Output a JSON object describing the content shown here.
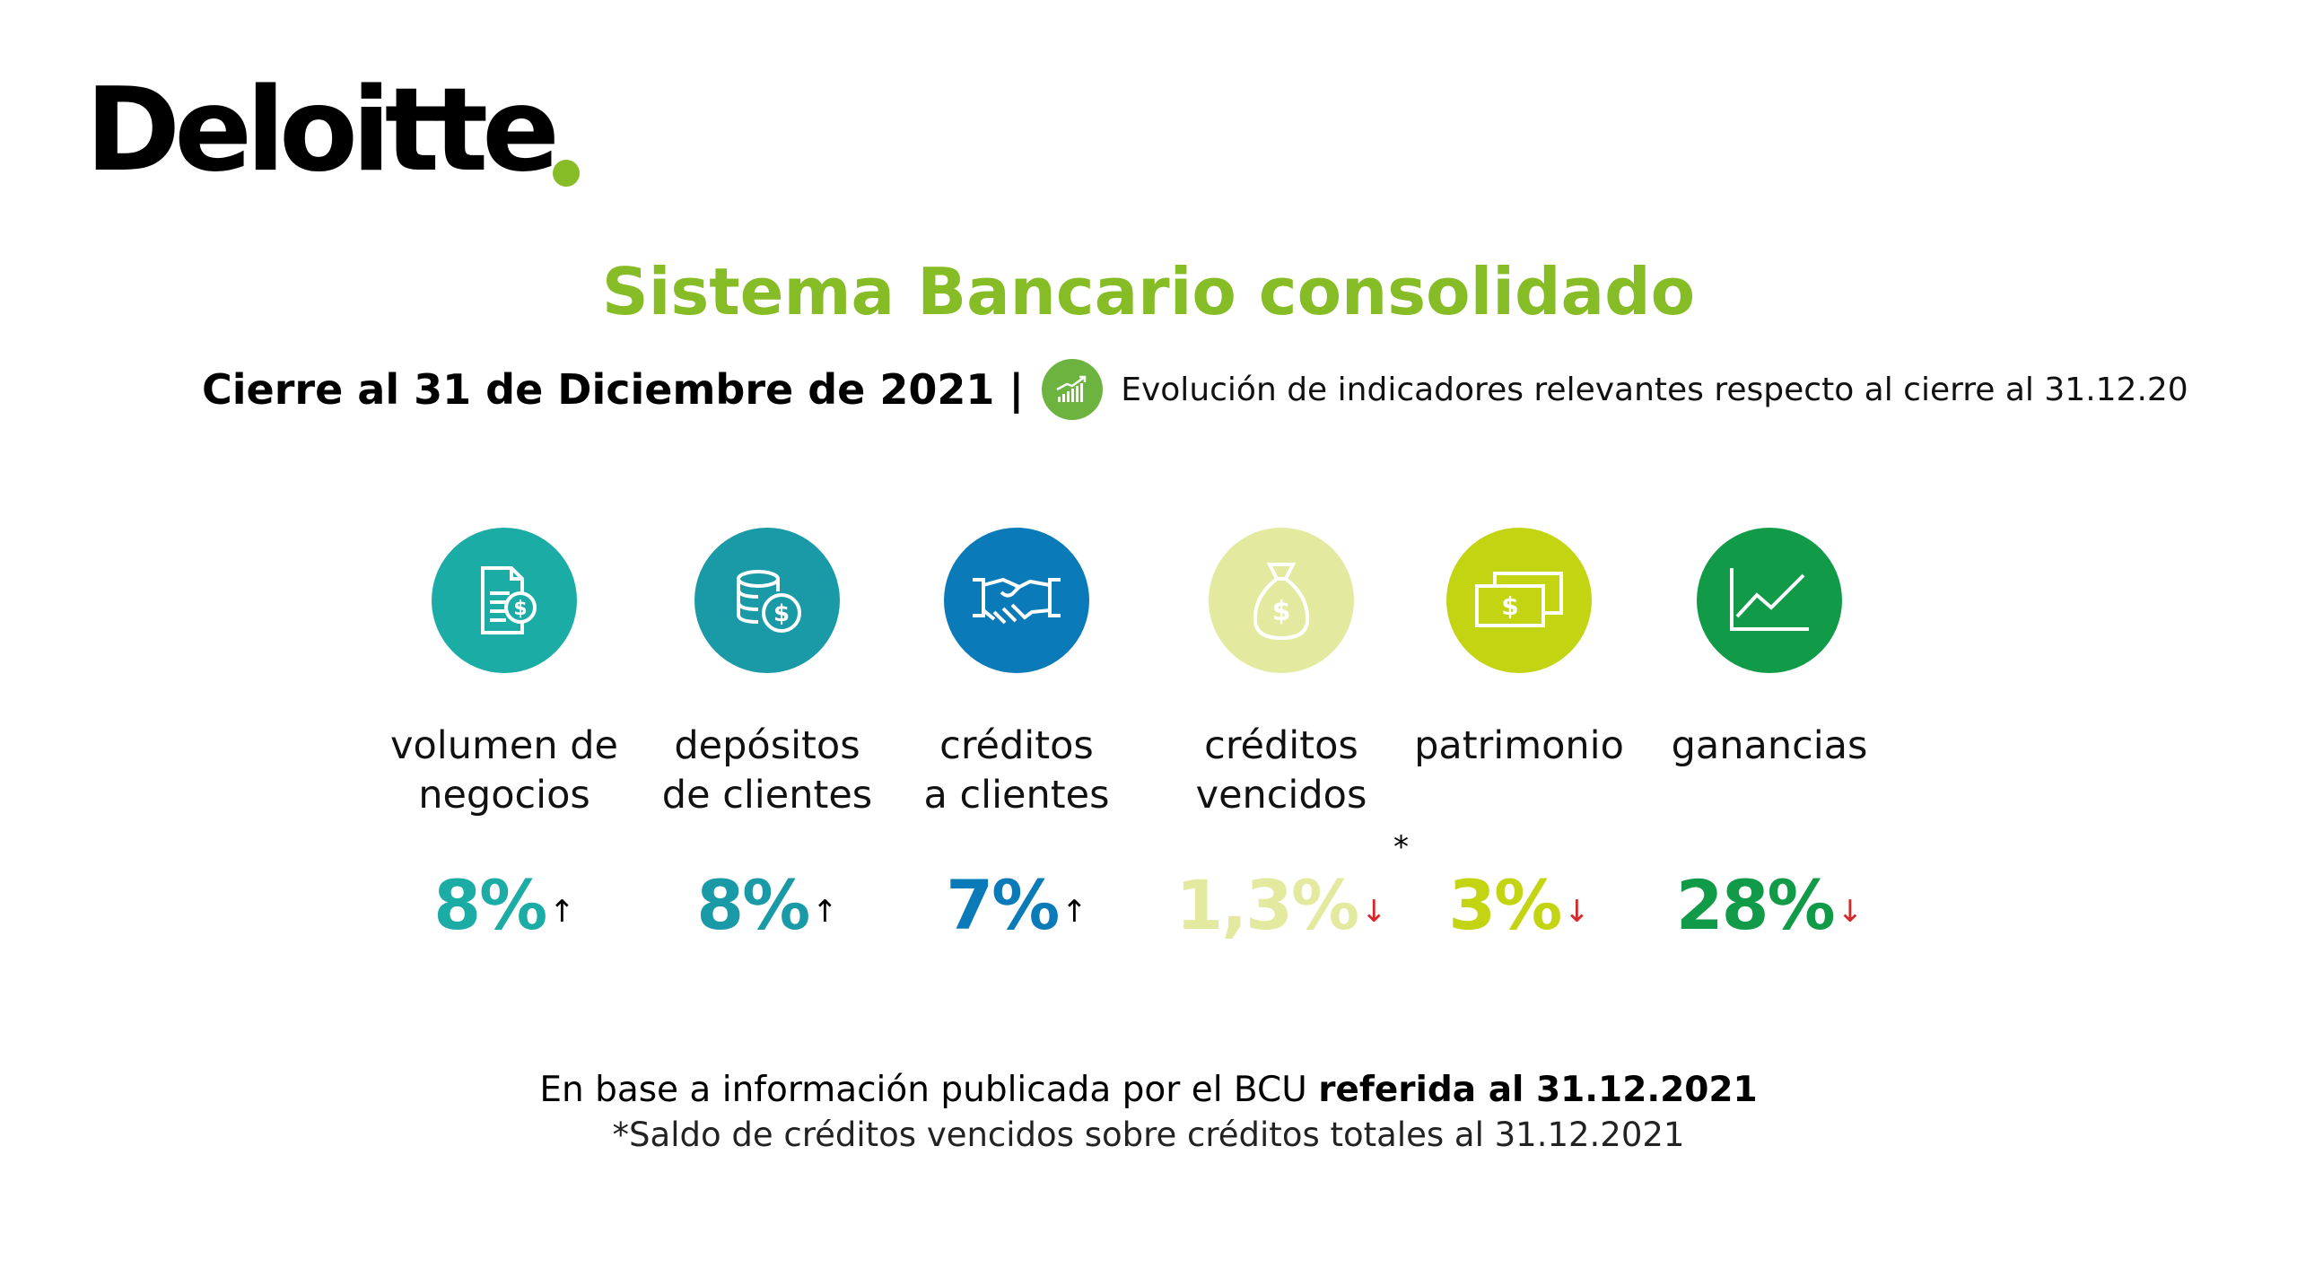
{
  "brand": {
    "logo_text": "Deloitte",
    "dot_color": "#86bc25"
  },
  "header": {
    "title": "Sistema Bancario consolidado",
    "title_color": "#86bc25",
    "subtitle": "Cierre al 31 de Diciembre de 2021",
    "separator": "|",
    "evolution_icon": "trend-chart-icon",
    "evolution_icon_color": "#6cb33f",
    "evolution_text": "Evolución de indicadores relevantes respecto al cierre al 31.12.20"
  },
  "indicators": [
    {
      "line1": "volumen de",
      "line2": "negocios",
      "value": "8%",
      "trend": "↑",
      "trend_color": "#000000",
      "color": "#1aaca5",
      "icon": "document-dollar-icon",
      "note": ""
    },
    {
      "line1": "depósitos",
      "line2": "de clientes",
      "value": "8%",
      "trend": "↑",
      "trend_color": "#000000",
      "color": "#1a9aa6",
      "icon": "coins-dollar-icon",
      "note": ""
    },
    {
      "line1": "créditos",
      "line2": "a clientes",
      "value": "7%",
      "trend": "↑",
      "trend_color": "#000000",
      "color": "#0a7ab8",
      "icon": "handshake-icon",
      "note": ""
    },
    {
      "line1": "créditos",
      "line2": "vencidos",
      "value": "1,3%",
      "trend": "↓",
      "trend_color": "#d62828",
      "color": "#e3ea9f",
      "icon": "money-bag-icon",
      "note": "*"
    },
    {
      "line1": "patrimonio",
      "line2": "",
      "value": "3%",
      "trend": "↓",
      "trend_color": "#d62828",
      "color": "#c3d412",
      "icon": "banknotes-icon",
      "note": ""
    },
    {
      "line1": "ganancias",
      "line2": "",
      "value": "28%",
      "trend": "↓",
      "trend_color": "#d62828",
      "color": "#119a47",
      "icon": "line-chart-icon",
      "note": ""
    }
  ],
  "footer": {
    "source_prefix": "En base a información publicada por el BCU ",
    "source_bold": "referida al 31.12.2021",
    "note": "*Saldo de créditos vencidos sobre créditos totales al 31.12.2021"
  }
}
